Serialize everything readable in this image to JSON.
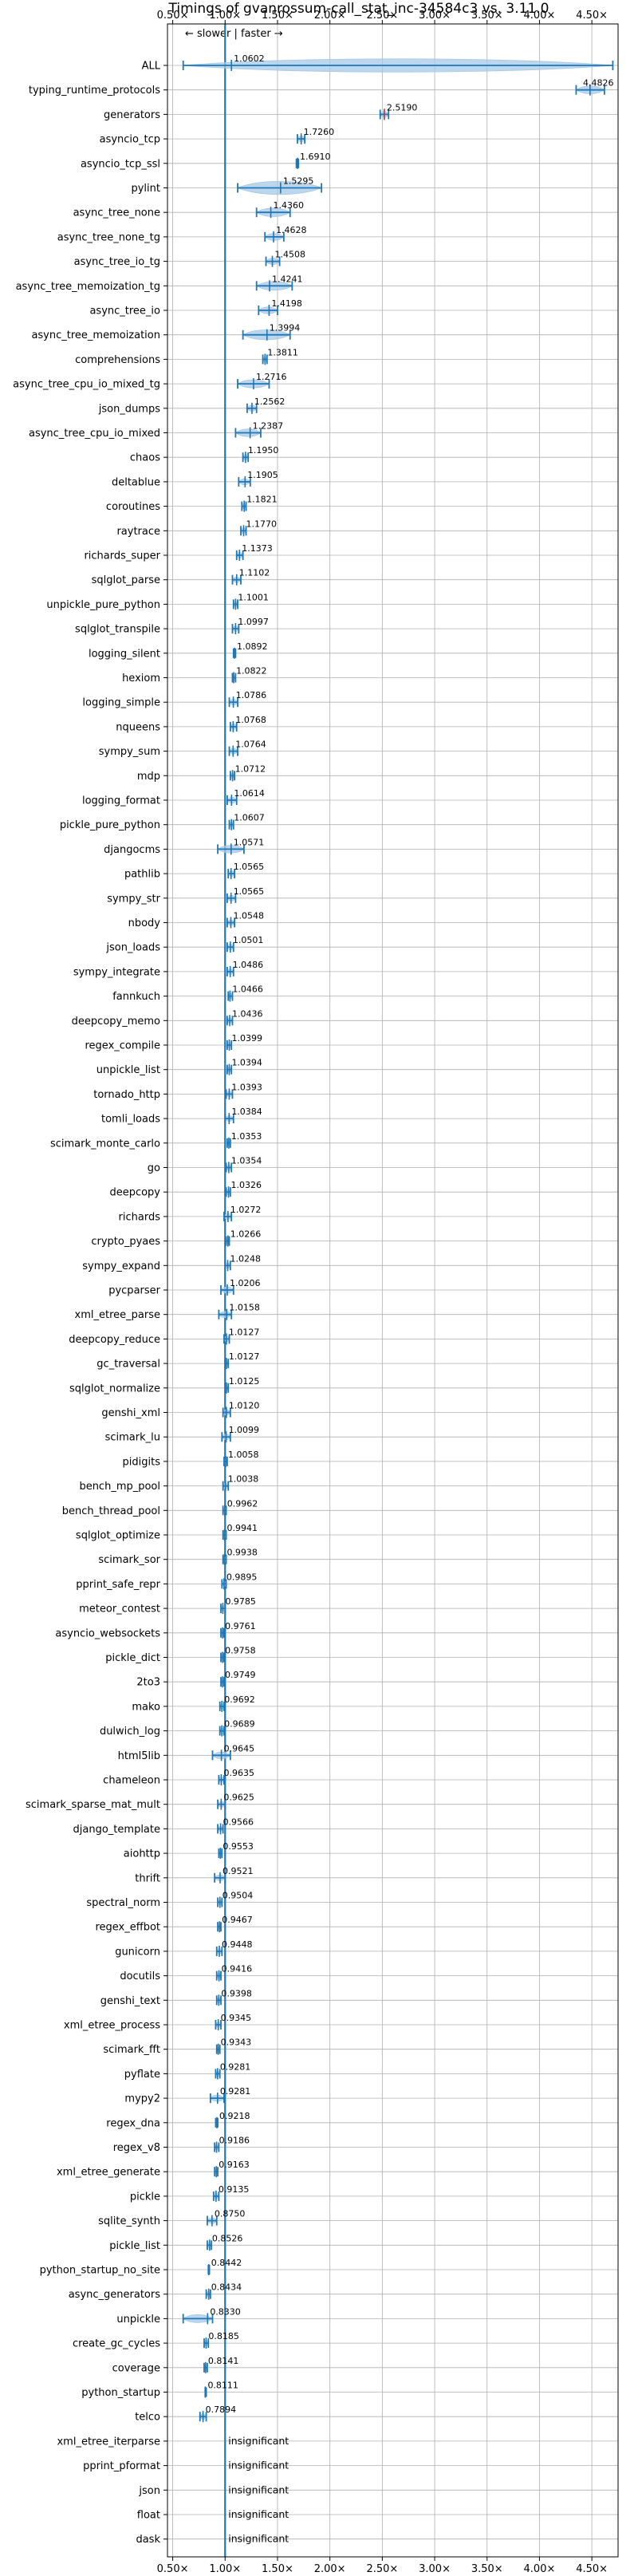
{
  "chart_data": {
    "type": "violin",
    "title": "Timings of gvanrossum-call_stat_inc-34584c3 vs. 3.11.0",
    "annotation": "← slower | faster →",
    "xlim": [
      0.45,
      4.75
    ],
    "x_ticks": [
      0.5,
      1.0,
      1.5,
      2.0,
      2.5,
      3.0,
      3.5,
      4.0,
      4.5
    ],
    "x_tick_labels": [
      "0.50×",
      "1.00×",
      "1.50×",
      "2.00×",
      "2.50×",
      "3.00×",
      "3.50×",
      "4.00×",
      "4.50×"
    ],
    "reference_line": 1.0,
    "grid": true,
    "colors": {
      "violin": "#a6c8e8",
      "error_bar": "#1f77b4",
      "median": "#1f77b4",
      "significant_median": "#d62728",
      "reference": "#1f77b4"
    },
    "benchmarks": [
      {
        "name": "ALL",
        "value": 1.0602,
        "label": "1.0602",
        "low": 0.6,
        "high": 4.7
      },
      {
        "name": "typing_runtime_protocols",
        "value": 4.4826,
        "label": "4.4826",
        "low": 4.35,
        "high": 4.62
      },
      {
        "name": "generators",
        "value": 2.519,
        "label": "2.5190",
        "low": 2.48,
        "high": 2.56
      },
      {
        "name": "asyncio_tcp",
        "value": 1.726,
        "label": "1.7260",
        "low": 1.69,
        "high": 1.76
      },
      {
        "name": "asyncio_tcp_ssl",
        "value": 1.691,
        "label": "1.6910",
        "low": 1.68,
        "high": 1.7
      },
      {
        "name": "pylint",
        "value": 1.5295,
        "label": "1.5295",
        "low": 1.12,
        "high": 1.92
      },
      {
        "name": "async_tree_none",
        "value": 1.436,
        "label": "1.4360",
        "low": 1.3,
        "high": 1.62
      },
      {
        "name": "async_tree_none_tg",
        "value": 1.4628,
        "label": "1.4628",
        "low": 1.38,
        "high": 1.56
      },
      {
        "name": "async_tree_io_tg",
        "value": 1.4508,
        "label": "1.4508",
        "low": 1.39,
        "high": 1.52
      },
      {
        "name": "async_tree_memoization_tg",
        "value": 1.4241,
        "label": "1.4241",
        "low": 1.3,
        "high": 1.64
      },
      {
        "name": "async_tree_io",
        "value": 1.4198,
        "label": "1.4198",
        "low": 1.32,
        "high": 1.5
      },
      {
        "name": "async_tree_memoization",
        "value": 1.3994,
        "label": "1.3994",
        "low": 1.17,
        "high": 1.62
      },
      {
        "name": "comprehensions",
        "value": 1.3811,
        "label": "1.3811",
        "low": 1.36,
        "high": 1.4
      },
      {
        "name": "async_tree_cpu_io_mixed_tg",
        "value": 1.2716,
        "label": "1.2716",
        "low": 1.12,
        "high": 1.42
      },
      {
        "name": "json_dumps",
        "value": 1.2562,
        "label": "1.2562",
        "low": 1.21,
        "high": 1.3
      },
      {
        "name": "async_tree_cpu_io_mixed",
        "value": 1.2387,
        "label": "1.2387",
        "low": 1.1,
        "high": 1.34
      },
      {
        "name": "chaos",
        "value": 1.195,
        "label": "1.1950",
        "low": 1.17,
        "high": 1.22
      },
      {
        "name": "deltablue",
        "value": 1.1905,
        "label": "1.1905",
        "low": 1.13,
        "high": 1.24
      },
      {
        "name": "coroutines",
        "value": 1.1821,
        "label": "1.1821",
        "low": 1.16,
        "high": 1.2
      },
      {
        "name": "raytrace",
        "value": 1.177,
        "label": "1.1770",
        "low": 1.15,
        "high": 1.2
      },
      {
        "name": "richards_super",
        "value": 1.1373,
        "label": "1.1373",
        "low": 1.11,
        "high": 1.17
      },
      {
        "name": "sqlglot_parse",
        "value": 1.1102,
        "label": "1.1102",
        "low": 1.07,
        "high": 1.15
      },
      {
        "name": "unpickle_pure_python",
        "value": 1.1001,
        "label": "1.1001",
        "low": 1.08,
        "high": 1.12
      },
      {
        "name": "sqlglot_transpile",
        "value": 1.0997,
        "label": "1.0997",
        "low": 1.07,
        "high": 1.13
      },
      {
        "name": "logging_silent",
        "value": 1.0892,
        "label": "1.0892",
        "low": 1.08,
        "high": 1.1
      },
      {
        "name": "hexiom",
        "value": 1.0822,
        "label": "1.0822",
        "low": 1.07,
        "high": 1.1
      },
      {
        "name": "logging_simple",
        "value": 1.0786,
        "label": "1.0786",
        "low": 1.04,
        "high": 1.12
      },
      {
        "name": "nqueens",
        "value": 1.0768,
        "label": "1.0768",
        "low": 1.05,
        "high": 1.11
      },
      {
        "name": "sympy_sum",
        "value": 1.0764,
        "label": "1.0764",
        "low": 1.04,
        "high": 1.12
      },
      {
        "name": "mdp",
        "value": 1.0712,
        "label": "1.0712",
        "low": 1.05,
        "high": 1.09
      },
      {
        "name": "logging_format",
        "value": 1.0614,
        "label": "1.0614",
        "low": 1.02,
        "high": 1.11
      },
      {
        "name": "pickle_pure_python",
        "value": 1.0607,
        "label": "1.0607",
        "low": 1.04,
        "high": 1.08
      },
      {
        "name": "djangocms",
        "value": 1.0571,
        "label": "1.0571",
        "low": 0.93,
        "high": 1.18
      },
      {
        "name": "pathlib",
        "value": 1.0565,
        "label": "1.0565",
        "low": 1.03,
        "high": 1.09
      },
      {
        "name": "sympy_str",
        "value": 1.0565,
        "label": "1.0565",
        "low": 1.02,
        "high": 1.1
      },
      {
        "name": "nbody",
        "value": 1.0548,
        "label": "1.0548",
        "low": 1.02,
        "high": 1.09
      },
      {
        "name": "json_loads",
        "value": 1.0501,
        "label": "1.0501",
        "low": 1.02,
        "high": 1.08
      },
      {
        "name": "sympy_integrate",
        "value": 1.0486,
        "label": "1.0486",
        "low": 1.02,
        "high": 1.08
      },
      {
        "name": "fannkuch",
        "value": 1.0466,
        "label": "1.0466",
        "low": 1.03,
        "high": 1.07
      },
      {
        "name": "deepcopy_memo",
        "value": 1.0436,
        "label": "1.0436",
        "low": 1.02,
        "high": 1.07
      },
      {
        "name": "regex_compile",
        "value": 1.0399,
        "label": "1.0399",
        "low": 1.02,
        "high": 1.06
      },
      {
        "name": "unpickle_list",
        "value": 1.0394,
        "label": "1.0394",
        "low": 1.02,
        "high": 1.06
      },
      {
        "name": "tornado_http",
        "value": 1.0393,
        "label": "1.0393",
        "low": 1.01,
        "high": 1.07
      },
      {
        "name": "tomli_loads",
        "value": 1.0384,
        "label": "1.0384",
        "low": 1.0,
        "high": 1.08
      },
      {
        "name": "scimark_monte_carlo",
        "value": 1.0353,
        "label": "1.0353",
        "low": 1.02,
        "high": 1.05
      },
      {
        "name": "go",
        "value": 1.0354,
        "label": "1.0354",
        "low": 1.01,
        "high": 1.06
      },
      {
        "name": "deepcopy",
        "value": 1.0326,
        "label": "1.0326",
        "low": 1.01,
        "high": 1.05
      },
      {
        "name": "richards",
        "value": 1.0272,
        "label": "1.0272",
        "low": 0.99,
        "high": 1.06
      },
      {
        "name": "crypto_pyaes",
        "value": 1.0266,
        "label": "1.0266",
        "low": 1.01,
        "high": 1.04
      },
      {
        "name": "sympy_expand",
        "value": 1.0248,
        "label": "1.0248",
        "low": 1.0,
        "high": 1.05
      },
      {
        "name": "pycparser",
        "value": 1.0206,
        "label": "1.0206",
        "low": 0.96,
        "high": 1.08
      },
      {
        "name": "xml_etree_parse",
        "value": 1.0158,
        "label": "1.0158",
        "low": 0.94,
        "high": 1.06
      },
      {
        "name": "deepcopy_reduce",
        "value": 1.0127,
        "label": "1.0127",
        "low": 0.99,
        "high": 1.04
      },
      {
        "name": "gc_traversal",
        "value": 1.0127,
        "label": "1.0127",
        "low": 1.0,
        "high": 1.03
      },
      {
        "name": "sqlglot_normalize",
        "value": 1.0125,
        "label": "1.0125",
        "low": 1.0,
        "high": 1.03
      },
      {
        "name": "genshi_xml",
        "value": 1.012,
        "label": "1.0120",
        "low": 0.98,
        "high": 1.05
      },
      {
        "name": "scimark_lu",
        "value": 1.0099,
        "label": "1.0099",
        "low": 0.97,
        "high": 1.05
      },
      {
        "name": "pidigits",
        "value": 1.0058,
        "label": "1.0058",
        "low": 0.99,
        "high": 1.02
      },
      {
        "name": "bench_mp_pool",
        "value": 1.0038,
        "label": "1.0038",
        "low": 0.98,
        "high": 1.03
      },
      {
        "name": "bench_thread_pool",
        "value": 0.9962,
        "label": "0.9962",
        "low": 0.98,
        "high": 1.01
      },
      {
        "name": "sqlglot_optimize",
        "value": 0.9941,
        "label": "0.9941",
        "low": 0.98,
        "high": 1.01
      },
      {
        "name": "scimark_sor",
        "value": 0.9938,
        "label": "0.9938",
        "low": 0.98,
        "high": 1.01
      },
      {
        "name": "pprint_safe_repr",
        "value": 0.9895,
        "label": "0.9895",
        "low": 0.97,
        "high": 1.01
      },
      {
        "name": "meteor_contest",
        "value": 0.9785,
        "label": "0.9785",
        "low": 0.96,
        "high": 1.0
      },
      {
        "name": "asyncio_websockets",
        "value": 0.9761,
        "label": "0.9761",
        "low": 0.96,
        "high": 0.99
      },
      {
        "name": "pickle_dict",
        "value": 0.9758,
        "label": "0.9758",
        "low": 0.96,
        "high": 0.99
      },
      {
        "name": "2to3",
        "value": 0.9749,
        "label": "0.9749",
        "low": 0.96,
        "high": 0.99
      },
      {
        "name": "mako",
        "value": 0.9692,
        "label": "0.9692",
        "low": 0.95,
        "high": 0.99
      },
      {
        "name": "dulwich_log",
        "value": 0.9689,
        "label": "0.9689",
        "low": 0.95,
        "high": 0.99
      },
      {
        "name": "html5lib",
        "value": 0.9645,
        "label": "0.9645",
        "low": 0.88,
        "high": 1.05
      },
      {
        "name": "chameleon",
        "value": 0.9635,
        "label": "0.9635",
        "low": 0.94,
        "high": 0.99
      },
      {
        "name": "scimark_sparse_mat_mult",
        "value": 0.9625,
        "label": "0.9625",
        "low": 0.93,
        "high": 1.0
      },
      {
        "name": "django_template",
        "value": 0.9566,
        "label": "0.9566",
        "low": 0.93,
        "high": 0.98
      },
      {
        "name": "aiohttp",
        "value": 0.9553,
        "label": "0.9553",
        "low": 0.94,
        "high": 0.97
      },
      {
        "name": "thrift",
        "value": 0.9521,
        "label": "0.9521",
        "low": 0.9,
        "high": 1.0
      },
      {
        "name": "spectral_norm",
        "value": 0.9504,
        "label": "0.9504",
        "low": 0.93,
        "high": 0.97
      },
      {
        "name": "regex_effbot",
        "value": 0.9467,
        "label": "0.9467",
        "low": 0.93,
        "high": 0.96
      },
      {
        "name": "gunicorn",
        "value": 0.9448,
        "label": "0.9448",
        "low": 0.92,
        "high": 0.97
      },
      {
        "name": "docutils",
        "value": 0.9416,
        "label": "0.9416",
        "low": 0.92,
        "high": 0.96
      },
      {
        "name": "genshi_text",
        "value": 0.9398,
        "label": "0.9398",
        "low": 0.92,
        "high": 0.96
      },
      {
        "name": "xml_etree_process",
        "value": 0.9345,
        "label": "0.9345",
        "low": 0.91,
        "high": 0.96
      },
      {
        "name": "scimark_fft",
        "value": 0.9343,
        "label": "0.9343",
        "low": 0.92,
        "high": 0.95
      },
      {
        "name": "pyflate",
        "value": 0.9281,
        "label": "0.9281",
        "low": 0.91,
        "high": 0.95
      },
      {
        "name": "mypy2",
        "value": 0.9281,
        "label": "0.9281",
        "low": 0.86,
        "high": 0.99
      },
      {
        "name": "regex_dna",
        "value": 0.9218,
        "label": "0.9218",
        "low": 0.91,
        "high": 0.93
      },
      {
        "name": "regex_v8",
        "value": 0.9186,
        "label": "0.9186",
        "low": 0.9,
        "high": 0.94
      },
      {
        "name": "xml_etree_generate",
        "value": 0.9163,
        "label": "0.9163",
        "low": 0.9,
        "high": 0.93
      },
      {
        "name": "pickle",
        "value": 0.9135,
        "label": "0.9135",
        "low": 0.89,
        "high": 0.94
      },
      {
        "name": "sqlite_synth",
        "value": 0.875,
        "label": "0.8750",
        "low": 0.83,
        "high": 0.92
      },
      {
        "name": "pickle_list",
        "value": 0.8526,
        "label": "0.8526",
        "low": 0.83,
        "high": 0.87
      },
      {
        "name": "python_startup_no_site",
        "value": 0.8442,
        "label": "0.8442",
        "low": 0.84,
        "high": 0.85
      },
      {
        "name": "async_generators",
        "value": 0.8434,
        "label": "0.8434",
        "low": 0.82,
        "high": 0.86
      },
      {
        "name": "unpickle",
        "value": 0.833,
        "label": "0.8330",
        "low": 0.6,
        "high": 0.88
      },
      {
        "name": "create_gc_cycles",
        "value": 0.8185,
        "label": "0.8185",
        "low": 0.8,
        "high": 0.84
      },
      {
        "name": "coverage",
        "value": 0.8141,
        "label": "0.8141",
        "low": 0.8,
        "high": 0.83
      },
      {
        "name": "python_startup",
        "value": 0.8111,
        "label": "0.8111",
        "low": 0.81,
        "high": 0.82
      },
      {
        "name": "telco",
        "value": 0.7894,
        "label": "0.7894",
        "low": 0.76,
        "high": 0.82
      },
      {
        "name": "xml_etree_iterparse",
        "value": null,
        "label": "insignificant"
      },
      {
        "name": "pprint_pformat",
        "value": null,
        "label": "insignificant"
      },
      {
        "name": "json",
        "value": null,
        "label": "insignificant"
      },
      {
        "name": "float",
        "value": null,
        "label": "insignificant"
      },
      {
        "name": "dask",
        "value": null,
        "label": "insignificant"
      }
    ]
  }
}
